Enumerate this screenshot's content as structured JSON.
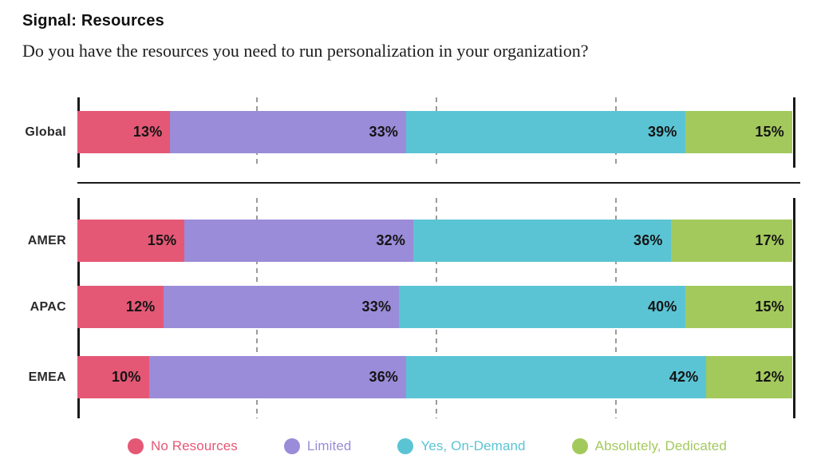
{
  "header": {
    "kicker": "Signal: Resources",
    "question": "Do you have the resources you need to run personalization in your organization?"
  },
  "chart_data": {
    "type": "bar",
    "orientation": "horizontal",
    "stacked": true,
    "unit": "%",
    "xlim": [
      0,
      100
    ],
    "gridlines_percent": [
      25,
      50,
      75
    ],
    "grid": "dashed-vertical",
    "legend_position": "bottom",
    "value_label_format": "{v}%",
    "series": [
      {
        "name": "No Resources",
        "color": "#E45876"
      },
      {
        "name": "Limited",
        "color": "#9A8CD8"
      },
      {
        "name": "Yes, On-Demand",
        "color": "#5BC4D4"
      },
      {
        "name": "Absolutely, Dedicated",
        "color": "#A3C95C"
      }
    ],
    "groups": [
      {
        "name": "global",
        "rows": [
          {
            "label": "Global",
            "values": [
              13,
              33,
              39,
              15
            ]
          }
        ]
      },
      {
        "name": "regions",
        "rows": [
          {
            "label": "AMER",
            "values": [
              15,
              32,
              36,
              17
            ]
          },
          {
            "label": "APAC",
            "values": [
              12,
              33,
              40,
              15
            ]
          },
          {
            "label": "EMEA",
            "values": [
              10,
              36,
              42,
              12
            ]
          }
        ]
      }
    ]
  }
}
